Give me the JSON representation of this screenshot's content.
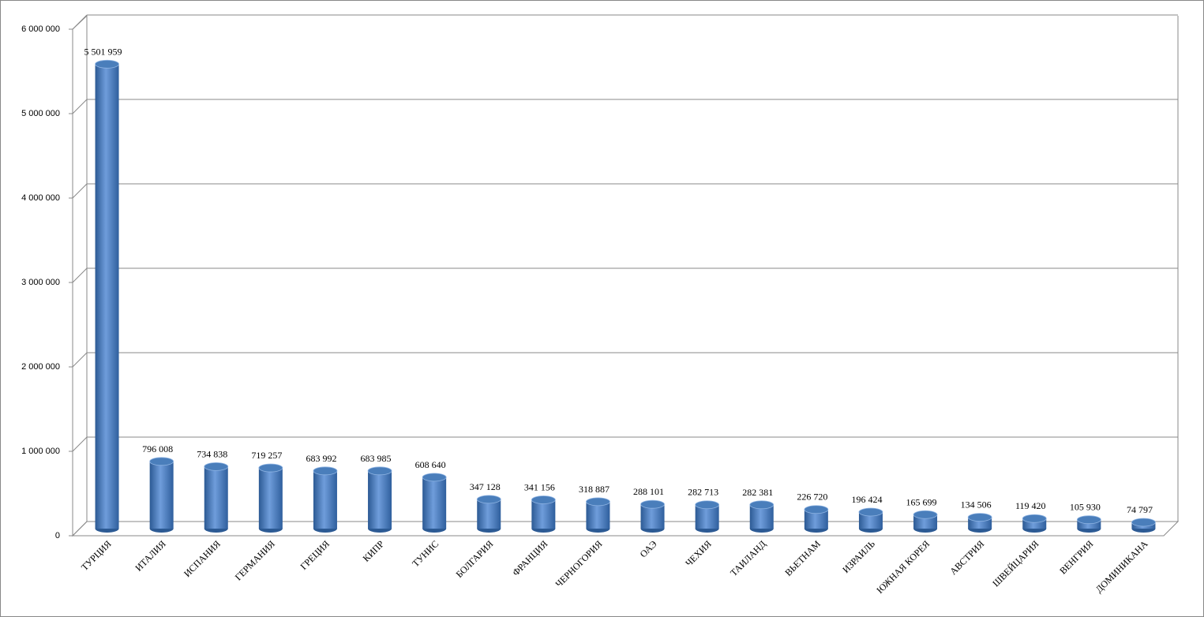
{
  "chart_data": {
    "type": "bar",
    "categories": [
      "ТУРЦИЯ",
      "ИТАЛИЯ",
      "ИСПАНИЯ",
      "ГЕРМАНИЯ",
      "ГРЕЦИЯ",
      "КИПР",
      "ТУНИС",
      "БОЛГАРИЯ",
      "ФРАНЦИЯ",
      "ЧЕРНОГОРИЯ",
      "ОАЭ",
      "ЧЕХИЯ",
      "ТАИЛАНД",
      "ВЬЕТНАМ",
      "ИЗРАИЛЬ",
      "ЮЖНАЯ КОРЕЯ",
      "АВСТРИЯ",
      "ШВЕЙЦАРИЯ",
      "ВЕНГРИЯ",
      "ДОМИНИКАНА"
    ],
    "values": [
      5501959,
      796008,
      734838,
      719257,
      683992,
      683985,
      608640,
      347128,
      341156,
      318887,
      288101,
      282713,
      282381,
      226720,
      196424,
      165699,
      134506,
      119420,
      105930,
      74797
    ],
    "value_labels": [
      "5 501 959",
      "796 008",
      "734 838",
      "719 257",
      "683 992",
      "683 985",
      "608 640",
      "347 128",
      "341 156",
      "318 887",
      "288 101",
      "282 713",
      "282 381",
      "226 720",
      "196 424",
      "165 699",
      "134 506",
      "119 420",
      "105 930",
      "74 797"
    ],
    "color": "#4a7ebb",
    "ylim": [
      0,
      6000000
    ],
    "yticks": [
      0,
      {
        "value": 1000000,
        "label": "1 000 000"
      },
      {
        "value": 2000000,
        "label": "2 000 000"
      },
      {
        "value": 3000000,
        "label": "3 000 000"
      },
      {
        "value": 4000000,
        "label": "4 000 000"
      },
      {
        "value": 5000000,
        "label": "5 000 000"
      },
      {
        "value": 6000000,
        "label": "6 000 000"
      }
    ],
    "grid": true
  }
}
